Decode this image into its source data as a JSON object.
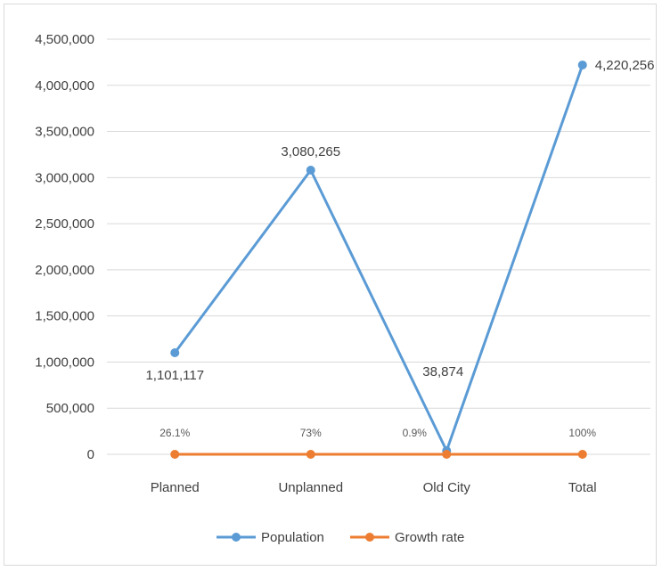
{
  "chart_data": {
    "type": "line",
    "title": "",
    "xlabel": "",
    "ylabel": "",
    "categories": [
      "Planned",
      "Unplanned",
      "Old City",
      "Total"
    ],
    "ylim": [
      0,
      4500000
    ],
    "y_ticks": [
      0,
      500000,
      1000000,
      1500000,
      2000000,
      2500000,
      3000000,
      3500000,
      4000000,
      4500000
    ],
    "y_tick_labels": [
      "0",
      "500,000",
      "1,000,000",
      "1,500,000",
      "2,000,000",
      "2,500,000",
      "3,000,000",
      "3,500,000",
      "4,000,000",
      "4,500,000"
    ],
    "grid": true,
    "legend_position": "bottom",
    "series": [
      {
        "name": "Population",
        "color": "#5b9bd5",
        "values": [
          1101117,
          3080265,
          38874,
          4220256
        ],
        "labels": [
          "1,101,117",
          "3,080,265",
          "38,874",
          "4,220,256"
        ]
      },
      {
        "name": "Growth rate",
        "color": "#ed7d31",
        "values": [
          26.1,
          73,
          0.9,
          100
        ],
        "labels": [
          "26.1%",
          "73%",
          "0.9%",
          "100%"
        ]
      }
    ]
  }
}
